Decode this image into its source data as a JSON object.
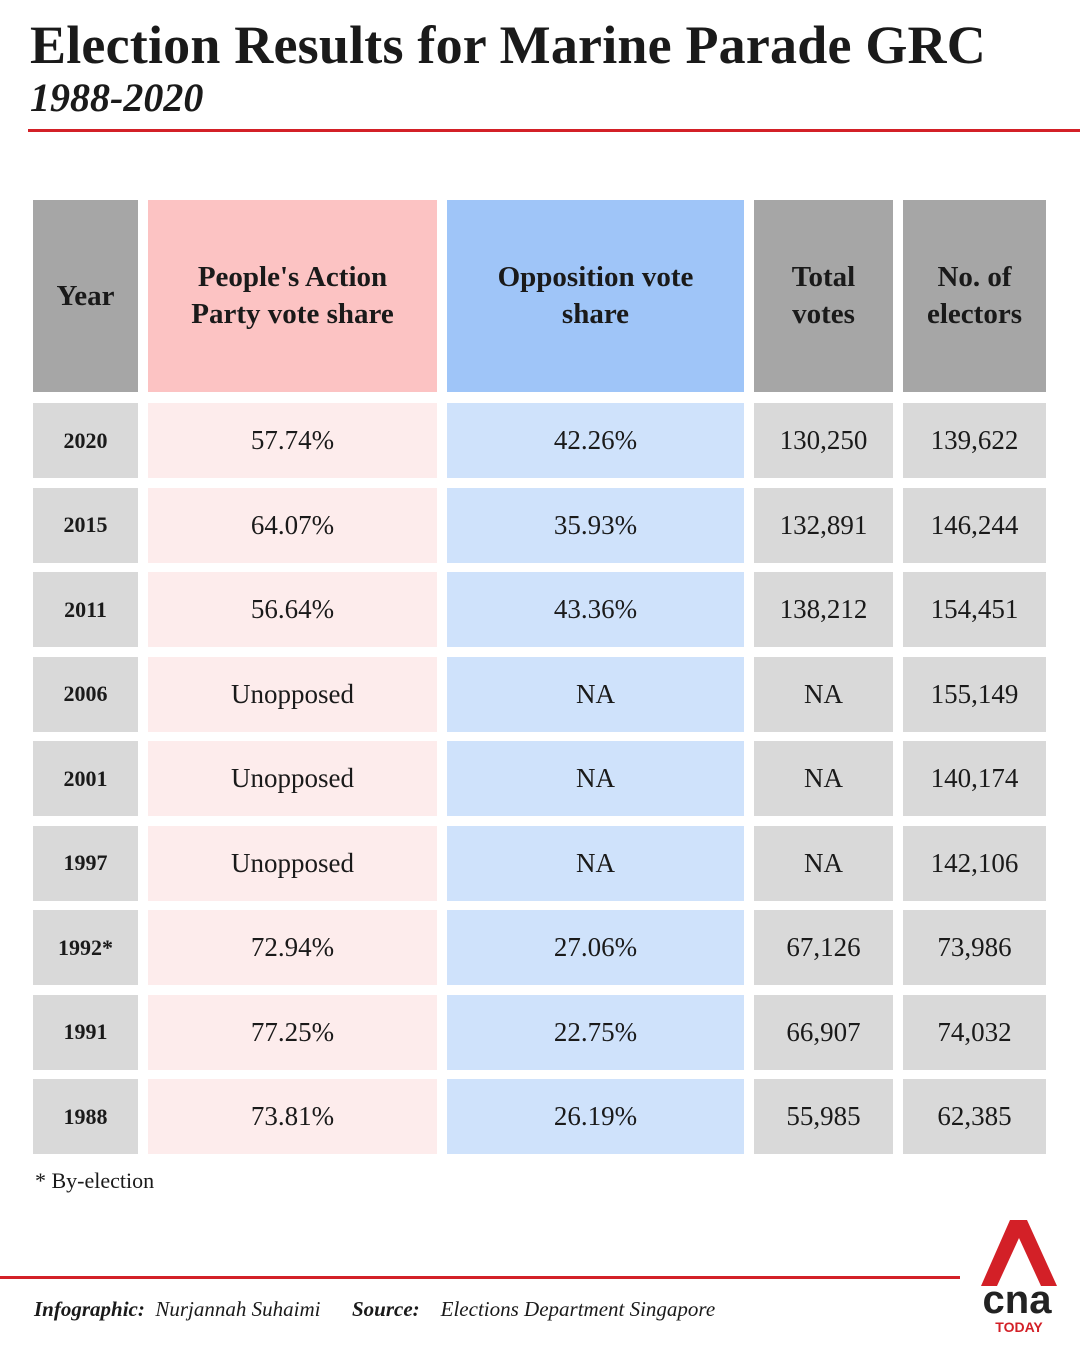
{
  "header": {
    "title": "Election Results for Marine Parade GRC",
    "subtitle": "1988-2020"
  },
  "table": {
    "columns": [
      "Year",
      "People's Action Party vote share",
      "Opposition vote share",
      "Total votes",
      "No. of electors"
    ],
    "rows": [
      [
        "2020",
        "57.74%",
        "42.26%",
        "130,250",
        "139,622"
      ],
      [
        "2015",
        "64.07%",
        "35.93%",
        "132,891",
        "146,244"
      ],
      [
        "2011",
        "56.64%",
        "43.36%",
        "138,212",
        "154,451"
      ],
      [
        "2006",
        "Unopposed",
        "NA",
        "NA",
        "155,149"
      ],
      [
        "2001",
        "Unopposed",
        "NA",
        "NA",
        "140,174"
      ],
      [
        "1997",
        "Unopposed",
        "NA",
        "NA",
        "142,106"
      ],
      [
        "1992*",
        "72.94%",
        "27.06%",
        "67,126",
        "73,986"
      ],
      [
        "1991",
        "77.25%",
        "22.75%",
        "66,907",
        "74,032"
      ],
      [
        "1988",
        "73.81%",
        "26.19%",
        "55,985",
        "62,385"
      ]
    ]
  },
  "footnote": "* By-election",
  "credits": {
    "infographic_label": "Infographic:",
    "infographic": "Nurjannah Suhaimi",
    "source_label": "Source:",
    "source": "Elections Department Singapore"
  },
  "logo": {
    "name": "cna",
    "tag": "TODAY"
  }
}
